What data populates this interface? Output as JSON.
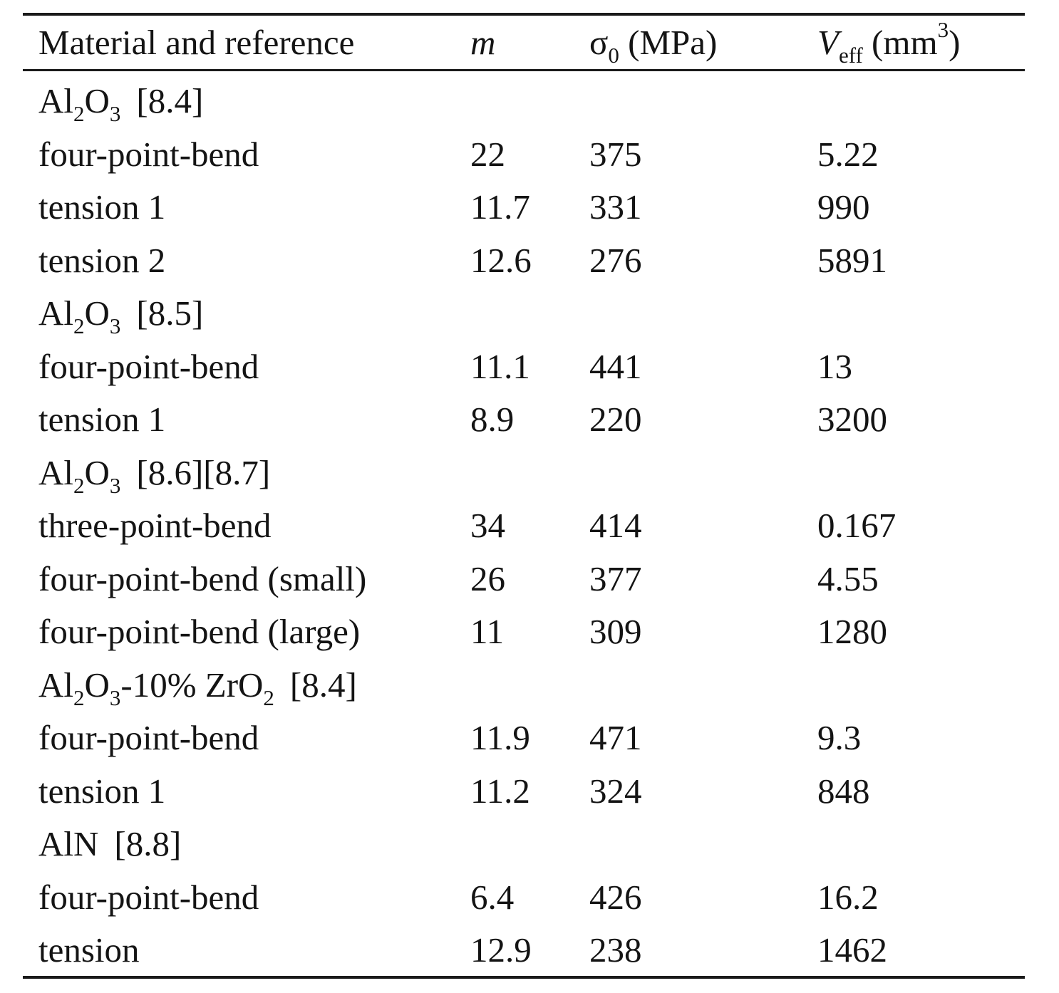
{
  "table": {
    "headers": {
      "material": "Material and reference",
      "m": "m",
      "sigma_symbol": "σ",
      "sigma_sub": "0",
      "sigma_unit": "(MPa)",
      "veff_symbol": "V",
      "veff_sub": "eff",
      "veff_unit_pre": "(mm",
      "veff_unit_sup": "3",
      "veff_unit_post": ")"
    },
    "groups": [
      {
        "name_parts": [
          "Al",
          "2",
          "O",
          "3"
        ],
        "reference": "[8.4]",
        "rows": [
          {
            "test": "four-point-bend",
            "m": "22",
            "sigma0": "375",
            "veff": "5.22"
          },
          {
            "test": "tension 1",
            "m": "11.7",
            "sigma0": "331",
            "veff": "990"
          },
          {
            "test": "tension 2",
            "m": "12.6",
            "sigma0": "276",
            "veff": "5891"
          }
        ]
      },
      {
        "name_parts": [
          "Al",
          "2",
          "O",
          "3"
        ],
        "reference": "[8.5]",
        "rows": [
          {
            "test": "four-point-bend",
            "m": "11.1",
            "sigma0": "441",
            "veff": "13"
          },
          {
            "test": "tension 1",
            "m": "8.9",
            "sigma0": "220",
            "veff": "3200"
          }
        ]
      },
      {
        "name_parts": [
          "Al",
          "2",
          "O",
          "3"
        ],
        "reference": "[8.6][8.7]",
        "rows": [
          {
            "test": "three-point-bend",
            "m": "34",
            "sigma0": "414",
            "veff": "0.167"
          },
          {
            "test": "four-point-bend (small)",
            "m": "26",
            "sigma0": "377",
            "veff": "4.55"
          },
          {
            "test": "four-point-bend (large)",
            "m": "11",
            "sigma0": "309",
            "veff": "1280"
          }
        ]
      },
      {
        "name_parts": [
          "Al",
          "2",
          "O",
          "3",
          "-10% ZrO",
          "2"
        ],
        "reference": "[8.4]",
        "rows": [
          {
            "test": "four-point-bend",
            "m": "11.9",
            "sigma0": "471",
            "veff": "9.3"
          },
          {
            "test": "tension 1",
            "m": "11.2",
            "sigma0": "324",
            "veff": "848"
          }
        ]
      },
      {
        "name_parts": [
          "AlN"
        ],
        "reference": "[8.8]",
        "rows": [
          {
            "test": "four-point-bend",
            "m": "6.4",
            "sigma0": "426",
            "veff": "16.2"
          },
          {
            "test": "tension",
            "m": "12.9",
            "sigma0": "238",
            "veff": "1462"
          }
        ]
      }
    ]
  }
}
